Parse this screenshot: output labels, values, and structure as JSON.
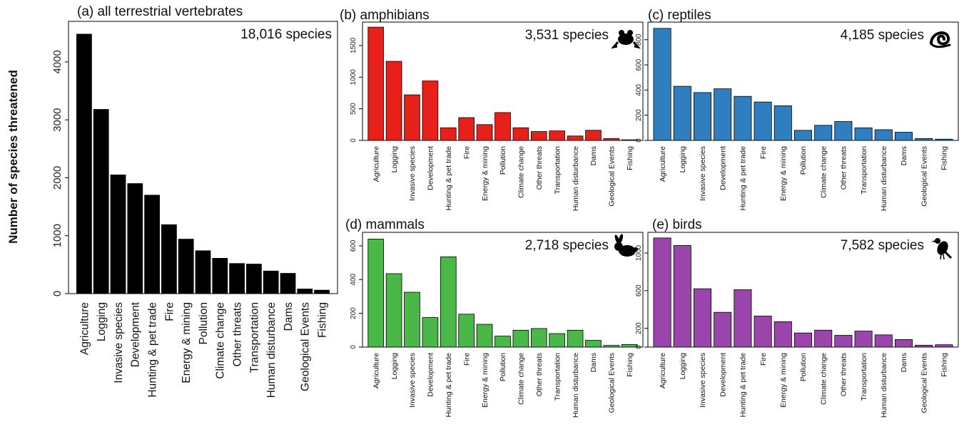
{
  "ylabel": "Number of species threatened",
  "categories": [
    "Agriculture",
    "Logging",
    "Invasive species",
    "Development",
    "Hunting & pet trade",
    "Fire",
    "Energy & mining",
    "Pollution",
    "Climate change",
    "Other threats",
    "Transportation",
    "Human disturbance",
    "Dams",
    "Geological Events",
    "Fishing"
  ],
  "chart_data": [
    {
      "id": "a",
      "type": "bar",
      "title": "(a) all terrestrial vertebrates",
      "species_label": "18,016 species",
      "color": "#000000",
      "icon": "",
      "ylim": [
        0,
        4700
      ],
      "yticks": [
        0,
        1000,
        2000,
        3000,
        4000
      ],
      "values": [
        4480,
        3180,
        2050,
        1900,
        1700,
        1190,
        940,
        740,
        610,
        520,
        510,
        390,
        350,
        80,
        60
      ]
    },
    {
      "id": "b",
      "type": "bar",
      "title": "(b) amphibians",
      "species_label": "3,531 species",
      "color": "#e8201a",
      "icon": "frog-icon",
      "ylim": [
        0,
        1870
      ],
      "yticks": [
        0,
        500,
        1000,
        1500
      ],
      "values": [
        1790,
        1250,
        720,
        940,
        200,
        360,
        250,
        440,
        200,
        140,
        150,
        70,
        160,
        30,
        10
      ]
    },
    {
      "id": "c",
      "type": "bar",
      "title": "(c) reptiles",
      "species_label": "4,185 species",
      "color": "#2f7ebf",
      "icon": "snake-icon",
      "ylim": [
        0,
        940
      ],
      "yticks": [
        0,
        200,
        400,
        600,
        800
      ],
      "values": [
        890,
        430,
        380,
        410,
        350,
        305,
        275,
        80,
        120,
        150,
        100,
        85,
        65,
        15,
        10
      ]
    },
    {
      "id": "d",
      "type": "bar",
      "title": "(d) mammals",
      "species_label": "2,718 species",
      "color": "#4ab848",
      "icon": "rabbit-icon",
      "ylim": [
        0,
        680
      ],
      "yticks": [
        0,
        200,
        400,
        600
      ],
      "values": [
        640,
        435,
        325,
        175,
        535,
        195,
        135,
        65,
        100,
        110,
        80,
        100,
        40,
        10,
        15
      ]
    },
    {
      "id": "e",
      "type": "bar",
      "title": "(e) birds",
      "species_label": "7,582 species",
      "color": "#9a45ab",
      "icon": "bird-icon",
      "ylim": [
        0,
        1220
      ],
      "yticks": [
        0,
        200,
        600,
        1000
      ],
      "values": [
        1160,
        1080,
        620,
        370,
        610,
        330,
        270,
        150,
        180,
        125,
        170,
        130,
        80,
        20,
        25
      ]
    }
  ]
}
